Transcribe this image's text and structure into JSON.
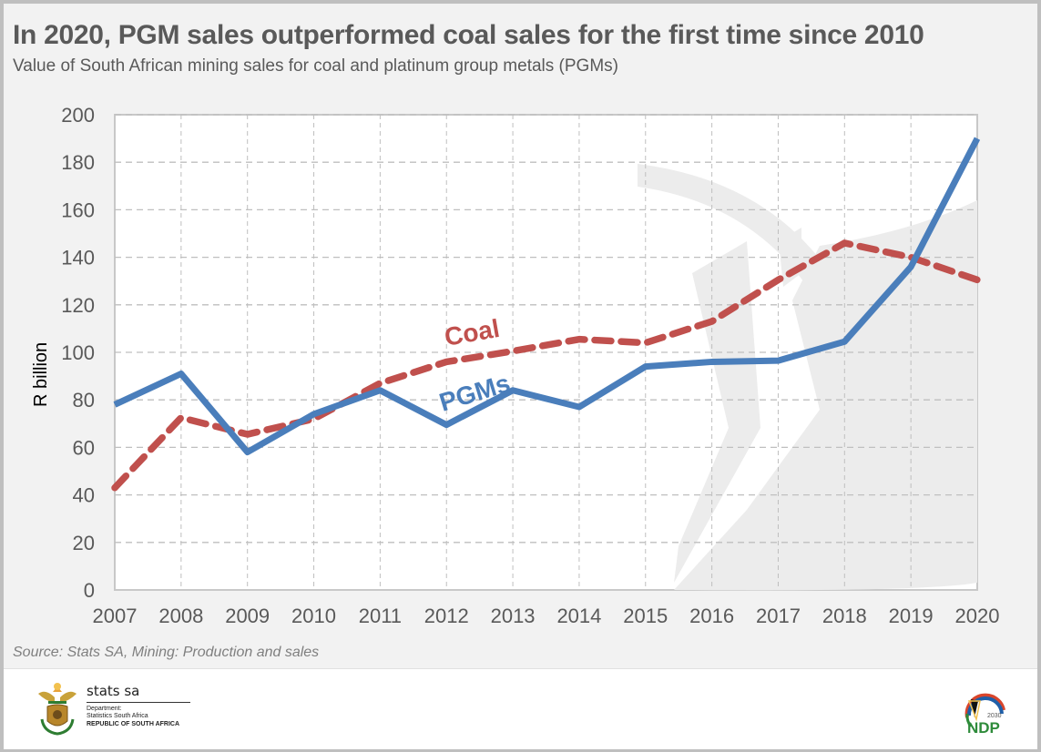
{
  "header": {
    "title": "In 2020, PGM sales outperformed coal sales for the first time since 2010",
    "subtitle": "Value of South African mining sales for coal and platinum group metals (PGMs)"
  },
  "source": "Source: Stats SA, Mining: Production and sales",
  "footer": {
    "org_name": "stats sa",
    "dept_line1": "Department:",
    "dept_line2": "Statistics South Africa",
    "country": "REPUBLIC OF SOUTH AFRICA",
    "ndp_year": "2030",
    "ndp_text": "NDP",
    "coat_of_arms_icon": "coat-of-arms-icon",
    "ndp_logo_icon": "ndp-logo-icon"
  },
  "colors": {
    "pgm": "#4a7ebb",
    "coal": "#c0504d",
    "grid": "#bfbfbf",
    "text": "#595959",
    "watermark": "#ececec"
  },
  "chart_data": {
    "type": "line",
    "title": "In 2020, PGM sales outperformed coal sales for the first time since 2010",
    "subtitle": "Value of South African mining sales for coal and platinum group metals (PGMs)",
    "xlabel": "",
    "ylabel": "R billion",
    "x": [
      "2007",
      "2008",
      "2009",
      "2010",
      "2011",
      "2012",
      "2013",
      "2014",
      "2015",
      "2016",
      "2017",
      "2018",
      "2019",
      "2020"
    ],
    "ylim": [
      0,
      200
    ],
    "yticks": [
      0,
      20,
      40,
      60,
      80,
      100,
      120,
      140,
      160,
      180,
      200
    ],
    "grid": true,
    "legend": "inline-labels",
    "series": [
      {
        "name": "PGMs",
        "style": "solid",
        "color": "#4a7ebb",
        "values": [
          78,
          91,
          58,
          74,
          84,
          69.5,
          84,
          77,
          94,
          96,
          96.5,
          104.5,
          136,
          190
        ]
      },
      {
        "name": "Coal",
        "style": "dashed",
        "color": "#c0504d",
        "values": [
          43,
          72.5,
          65.5,
          72,
          87,
          96,
          100.5,
          105.5,
          104,
          113,
          130.5,
          146,
          140,
          130.5
        ]
      }
    ],
    "annotations": [
      {
        "text": "Coal",
        "series": "Coal",
        "near_x": "2013"
      },
      {
        "text": "PGMs",
        "series": "PGMs",
        "near_x": "2012"
      }
    ]
  }
}
